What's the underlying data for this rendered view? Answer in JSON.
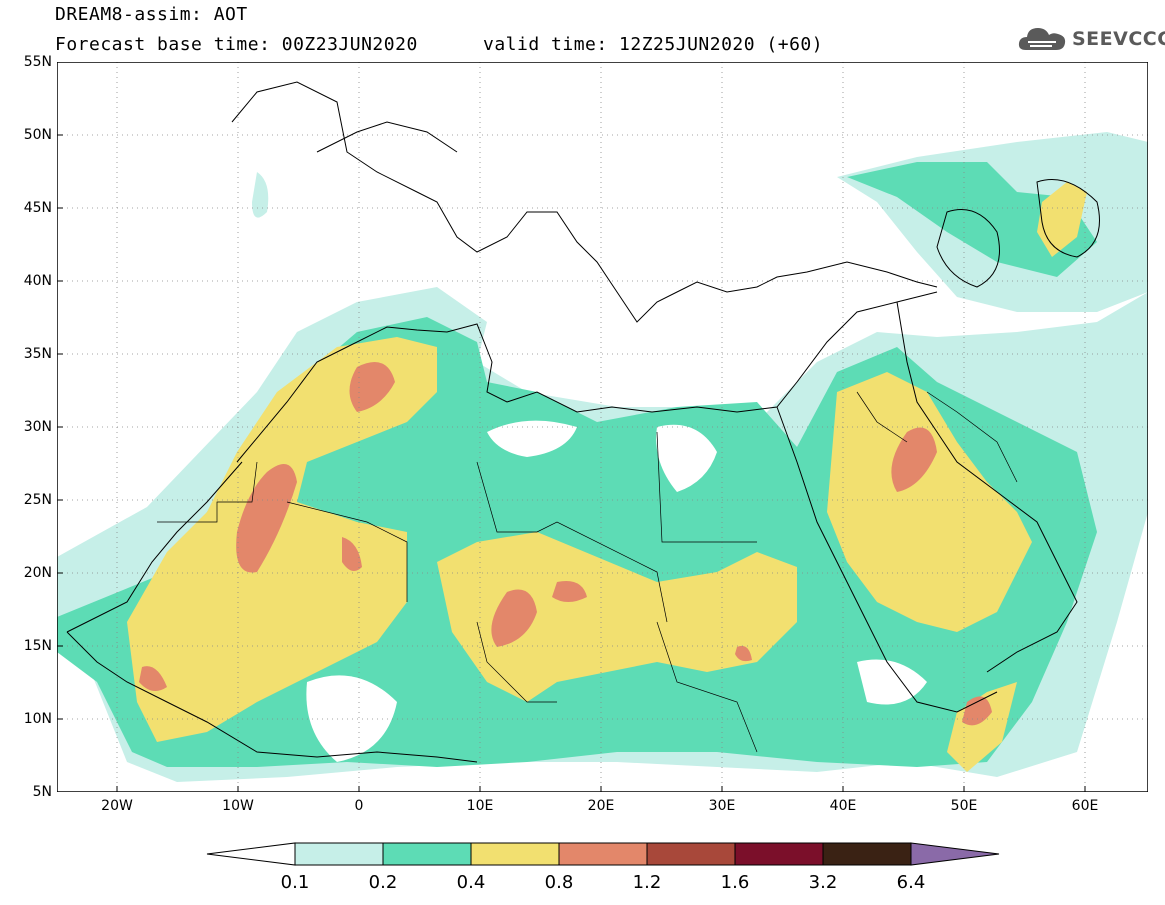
{
  "header": {
    "model_line": "DREAM8-assim: AOT",
    "base_time": "Forecast base time: 00Z23JUN2020",
    "valid_time": "valid time: 12Z25JUN2020 (+60)"
  },
  "logo": {
    "text": "SEEVCCC",
    "icon": "cloud-icon"
  },
  "map": {
    "lat_labels": [
      "55N",
      "50N",
      "45N",
      "40N",
      "35N",
      "30N",
      "25N",
      "20N",
      "15N",
      "10N",
      "5N"
    ],
    "lon_labels": [
      "20W",
      "10W",
      "0",
      "10E",
      "20E",
      "30E",
      "40E",
      "50E",
      "60E"
    ],
    "extent": {
      "lon": [
        -25,
        65
      ],
      "lat": [
        5,
        55
      ]
    }
  },
  "colorbar": {
    "labels": [
      "0.1",
      "0.2",
      "0.4",
      "0.8",
      "1.2",
      "1.6",
      "3.2",
      "6.4"
    ],
    "colors": [
      "#ffffff",
      "#c6efe8",
      "#5ddcb5",
      "#f2e070",
      "#e3876a",
      "#a8483a",
      "#7b0f2a",
      "#3a2214",
      "#8a6aa8"
    ]
  }
}
